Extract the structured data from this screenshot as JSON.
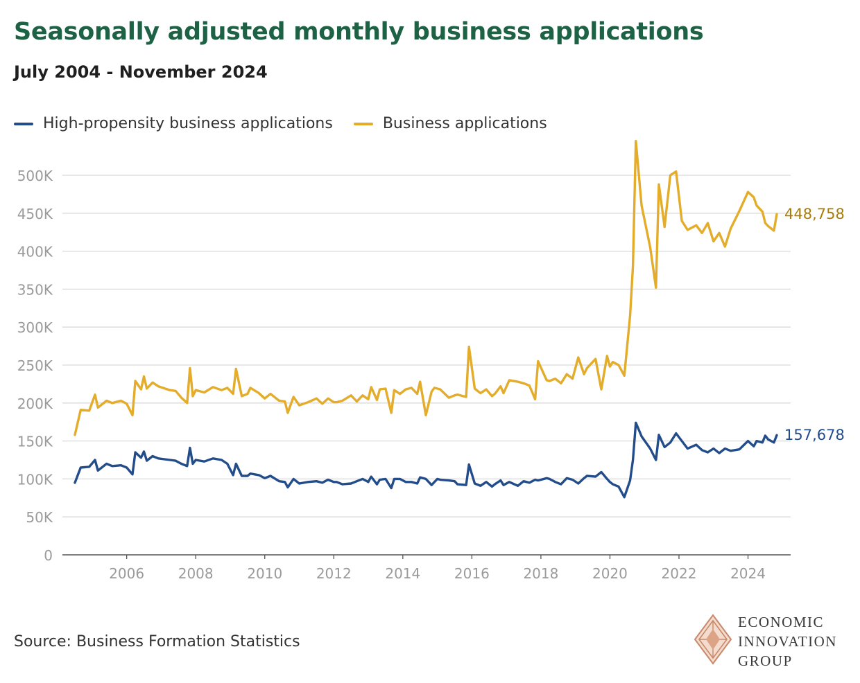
{
  "title": "Seasonally adjusted monthly business applications",
  "subtitle": "July 2004 - November 2024",
  "source": "Source: Business Formation Statistics",
  "logo": {
    "line1": "ECONOMIC",
    "line2": "INNOVATION",
    "line3": "GROUP",
    "icon": "diamond-logo-icon"
  },
  "colors": {
    "title": "#1d6245",
    "business": "#e3ac2a",
    "business_label": "#a77d0a",
    "high_propensity": "#234d8a",
    "grid": "#d9d9d9",
    "axis_text": "#9a9a9a"
  },
  "chart_data": {
    "type": "line",
    "x_range": [
      "2004-07",
      "2024-11"
    ],
    "xticks": [
      "2006",
      "2008",
      "2010",
      "2012",
      "2014",
      "2016",
      "2018",
      "2020",
      "2022",
      "2024"
    ],
    "yticks": [
      "0",
      "50K",
      "100K",
      "150K",
      "200K",
      "250K",
      "300K",
      "350K",
      "400K",
      "450K",
      "500K"
    ],
    "ylim": [
      0,
      500000
    ],
    "grid": true,
    "legend_position": "top-left",
    "series": [
      {
        "name": "High-propensity business applications",
        "end_label": "157,678",
        "points": [
          [
            "2004-07",
            95000
          ],
          [
            "2004-09",
            115000
          ],
          [
            "2004-12",
            116000
          ],
          [
            "2005-02",
            125000
          ],
          [
            "2005-03",
            111000
          ],
          [
            "2005-06",
            120000
          ],
          [
            "2005-08",
            117000
          ],
          [
            "2005-11",
            118000
          ],
          [
            "2006-01",
            115000
          ],
          [
            "2006-03",
            106000
          ],
          [
            "2006-04",
            135000
          ],
          [
            "2006-06",
            128000
          ],
          [
            "2006-07",
            136000
          ],
          [
            "2006-08",
            124000
          ],
          [
            "2006-10",
            130000
          ],
          [
            "2006-12",
            127000
          ],
          [
            "2007-04",
            125000
          ],
          [
            "2007-06",
            124000
          ],
          [
            "2007-08",
            120000
          ],
          [
            "2007-10",
            117000
          ],
          [
            "2007-11",
            141000
          ],
          [
            "2007-12",
            120000
          ],
          [
            "2008-01",
            125000
          ],
          [
            "2008-04",
            123000
          ],
          [
            "2008-07",
            127000
          ],
          [
            "2008-10",
            125000
          ],
          [
            "2008-12",
            120000
          ],
          [
            "2009-02",
            105000
          ],
          [
            "2009-03",
            120000
          ],
          [
            "2009-05",
            104000
          ],
          [
            "2009-07",
            104000
          ],
          [
            "2009-08",
            107000
          ],
          [
            "2009-11",
            105000
          ],
          [
            "2010-01",
            101000
          ],
          [
            "2010-03",
            104000
          ],
          [
            "2010-06",
            97000
          ],
          [
            "2010-08",
            96000
          ],
          [
            "2010-09",
            89000
          ],
          [
            "2010-11",
            100000
          ],
          [
            "2011-01",
            94000
          ],
          [
            "2011-04",
            96000
          ],
          [
            "2011-07",
            97000
          ],
          [
            "2011-09",
            95000
          ],
          [
            "2011-11",
            99000
          ],
          [
            "2012-01",
            96000
          ],
          [
            "2012-02",
            96000
          ],
          [
            "2012-04",
            93000
          ],
          [
            "2012-07",
            94000
          ],
          [
            "2012-09",
            97000
          ],
          [
            "2012-11",
            100000
          ],
          [
            "2013-01",
            96000
          ],
          [
            "2013-02",
            103000
          ],
          [
            "2013-04",
            93000
          ],
          [
            "2013-05",
            99000
          ],
          [
            "2013-07",
            100000
          ],
          [
            "2013-09",
            88000
          ],
          [
            "2013-10",
            100000
          ],
          [
            "2013-12",
            100000
          ],
          [
            "2014-02",
            96000
          ],
          [
            "2014-04",
            96000
          ],
          [
            "2014-06",
            94000
          ],
          [
            "2014-07",
            102000
          ],
          [
            "2014-09",
            100000
          ],
          [
            "2014-11",
            92000
          ],
          [
            "2014-12",
            96000
          ],
          [
            "2015-01",
            100000
          ],
          [
            "2015-02",
            99000
          ],
          [
            "2015-05",
            98000
          ],
          [
            "2015-07",
            97000
          ],
          [
            "2015-08",
            93000
          ],
          [
            "2015-11",
            92000
          ],
          [
            "2015-12",
            119000
          ],
          [
            "2016-02",
            94000
          ],
          [
            "2016-04",
            91000
          ],
          [
            "2016-06",
            96000
          ],
          [
            "2016-08",
            90000
          ],
          [
            "2016-09",
            93000
          ],
          [
            "2016-11",
            98000
          ],
          [
            "2016-12",
            92000
          ],
          [
            "2017-02",
            96000
          ],
          [
            "2017-05",
            91000
          ],
          [
            "2017-07",
            97000
          ],
          [
            "2017-09",
            95000
          ],
          [
            "2017-11",
            99000
          ],
          [
            "2017-12",
            98000
          ],
          [
            "2018-03",
            101000
          ],
          [
            "2018-04",
            100000
          ],
          [
            "2018-06",
            96000
          ],
          [
            "2018-08",
            93000
          ],
          [
            "2018-10",
            101000
          ],
          [
            "2018-12",
            99000
          ],
          [
            "2019-02",
            94000
          ],
          [
            "2019-04",
            101000
          ],
          [
            "2019-05",
            104000
          ],
          [
            "2019-08",
            103000
          ],
          [
            "2019-10",
            109000
          ],
          [
            "2019-12",
            100000
          ],
          [
            "2020-01",
            96000
          ],
          [
            "2020-02",
            93000
          ],
          [
            "2020-04",
            90000
          ],
          [
            "2020-06",
            76000
          ],
          [
            "2020-08",
            98000
          ],
          [
            "2020-09",
            125000
          ],
          [
            "2020-10",
            174000
          ],
          [
            "2020-12",
            156000
          ],
          [
            "2021-03",
            140000
          ],
          [
            "2021-05",
            125000
          ],
          [
            "2021-06",
            158000
          ],
          [
            "2021-08",
            142000
          ],
          [
            "2021-10",
            148000
          ],
          [
            "2021-12",
            160000
          ],
          [
            "2022-02",
            150000
          ],
          [
            "2022-04",
            140000
          ],
          [
            "2022-07",
            145000
          ],
          [
            "2022-09",
            138000
          ],
          [
            "2022-11",
            135000
          ],
          [
            "2023-01",
            140000
          ],
          [
            "2023-03",
            134000
          ],
          [
            "2023-05",
            140000
          ],
          [
            "2023-07",
            137000
          ],
          [
            "2023-10",
            139000
          ],
          [
            "2024-01",
            150000
          ],
          [
            "2024-03",
            143000
          ],
          [
            "2024-04",
            150000
          ],
          [
            "2024-06",
            148000
          ],
          [
            "2024-07",
            157000
          ],
          [
            "2024-08",
            152000
          ],
          [
            "2024-10",
            148000
          ],
          [
            "2024-11",
            157678
          ]
        ]
      },
      {
        "name": "Business applications",
        "end_label": "448,758",
        "points": [
          [
            "2004-07",
            158000
          ],
          [
            "2004-09",
            191000
          ],
          [
            "2004-12",
            190000
          ],
          [
            "2005-02",
            211000
          ],
          [
            "2005-03",
            194000
          ],
          [
            "2005-06",
            203000
          ],
          [
            "2005-08",
            200000
          ],
          [
            "2005-11",
            203000
          ],
          [
            "2006-01",
            199000
          ],
          [
            "2006-03",
            184000
          ],
          [
            "2006-04",
            229000
          ],
          [
            "2006-06",
            218000
          ],
          [
            "2006-07",
            235000
          ],
          [
            "2006-08",
            219000
          ],
          [
            "2006-10",
            227000
          ],
          [
            "2006-12",
            222000
          ],
          [
            "2007-04",
            217000
          ],
          [
            "2007-06",
            216000
          ],
          [
            "2007-08",
            207000
          ],
          [
            "2007-10",
            200000
          ],
          [
            "2007-11",
            246000
          ],
          [
            "2007-12",
            209000
          ],
          [
            "2008-01",
            217000
          ],
          [
            "2008-04",
            214000
          ],
          [
            "2008-07",
            221000
          ],
          [
            "2008-10",
            217000
          ],
          [
            "2008-12",
            220000
          ],
          [
            "2009-02",
            212000
          ],
          [
            "2009-03",
            245000
          ],
          [
            "2009-05",
            209000
          ],
          [
            "2009-07",
            212000
          ],
          [
            "2009-08",
            220000
          ],
          [
            "2009-11",
            213000
          ],
          [
            "2010-01",
            206000
          ],
          [
            "2010-03",
            212000
          ],
          [
            "2010-06",
            203000
          ],
          [
            "2010-08",
            202000
          ],
          [
            "2010-09",
            187000
          ],
          [
            "2010-11",
            208000
          ],
          [
            "2011-01",
            197000
          ],
          [
            "2011-04",
            201000
          ],
          [
            "2011-07",
            206000
          ],
          [
            "2011-09",
            199000
          ],
          [
            "2011-11",
            206000
          ],
          [
            "2012-01",
            201000
          ],
          [
            "2012-02",
            201000
          ],
          [
            "2012-04",
            203000
          ],
          [
            "2012-07",
            210000
          ],
          [
            "2012-09",
            202000
          ],
          [
            "2012-11",
            210000
          ],
          [
            "2013-01",
            205000
          ],
          [
            "2013-02",
            221000
          ],
          [
            "2013-04",
            204000
          ],
          [
            "2013-05",
            218000
          ],
          [
            "2013-07",
            219000
          ],
          [
            "2013-09",
            187000
          ],
          [
            "2013-10",
            217000
          ],
          [
            "2013-12",
            212000
          ],
          [
            "2014-02",
            218000
          ],
          [
            "2014-04",
            220000
          ],
          [
            "2014-06",
            212000
          ],
          [
            "2014-07",
            228000
          ],
          [
            "2014-09",
            184000
          ],
          [
            "2014-11",
            215000
          ],
          [
            "2014-12",
            220000
          ],
          [
            "2015-01",
            219000
          ],
          [
            "2015-02",
            218000
          ],
          [
            "2015-05",
            207000
          ],
          [
            "2015-07",
            210000
          ],
          [
            "2015-08",
            211000
          ],
          [
            "2015-11",
            208000
          ],
          [
            "2015-12",
            274000
          ],
          [
            "2016-02",
            219000
          ],
          [
            "2016-04",
            213000
          ],
          [
            "2016-06",
            218000
          ],
          [
            "2016-08",
            209000
          ],
          [
            "2016-09",
            212000
          ],
          [
            "2016-11",
            222000
          ],
          [
            "2016-12",
            213000
          ],
          [
            "2017-02",
            230000
          ],
          [
            "2017-05",
            228000
          ],
          [
            "2017-07",
            226000
          ],
          [
            "2017-09",
            223000
          ],
          [
            "2017-11",
            205000
          ],
          [
            "2017-12",
            255000
          ],
          [
            "2018-03",
            230000
          ],
          [
            "2018-04",
            229000
          ],
          [
            "2018-06",
            232000
          ],
          [
            "2018-08",
            226000
          ],
          [
            "2018-10",
            238000
          ],
          [
            "2018-12",
            232000
          ],
          [
            "2019-02",
            260000
          ],
          [
            "2019-04",
            238000
          ],
          [
            "2019-05",
            246000
          ],
          [
            "2019-08",
            258000
          ],
          [
            "2019-10",
            218000
          ],
          [
            "2019-12",
            262000
          ],
          [
            "2020-01",
            248000
          ],
          [
            "2020-02",
            254000
          ],
          [
            "2020-04",
            250000
          ],
          [
            "2020-06",
            236000
          ],
          [
            "2020-08",
            315000
          ],
          [
            "2020-09",
            380000
          ],
          [
            "2020-10",
            545000
          ],
          [
            "2020-12",
            460000
          ],
          [
            "2021-03",
            405000
          ],
          [
            "2021-05",
            352000
          ],
          [
            "2021-06",
            488000
          ],
          [
            "2021-08",
            432000
          ],
          [
            "2021-10",
            500000
          ],
          [
            "2021-12",
            505000
          ],
          [
            "2022-02",
            440000
          ],
          [
            "2022-04",
            428000
          ],
          [
            "2022-07",
            434000
          ],
          [
            "2022-09",
            424000
          ],
          [
            "2022-11",
            437000
          ],
          [
            "2023-01",
            413000
          ],
          [
            "2023-03",
            424000
          ],
          [
            "2023-05",
            406000
          ],
          [
            "2023-07",
            430000
          ],
          [
            "2023-10",
            453000
          ],
          [
            "2024-01",
            478000
          ],
          [
            "2024-03",
            471000
          ],
          [
            "2024-04",
            460000
          ],
          [
            "2024-06",
            452000
          ],
          [
            "2024-07",
            437000
          ],
          [
            "2024-08",
            433000
          ],
          [
            "2024-10",
            427000
          ],
          [
            "2024-11",
            448758
          ]
        ]
      }
    ]
  }
}
